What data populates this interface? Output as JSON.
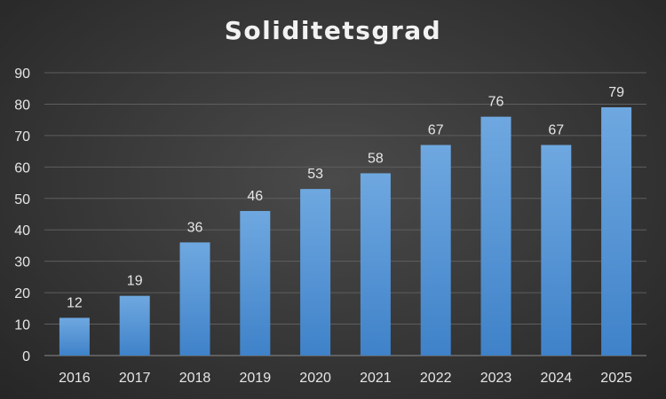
{
  "chart_data": {
    "type": "bar",
    "title": "Soliditetsgrad",
    "categories": [
      "2016",
      "2017",
      "2018",
      "2019",
      "2020",
      "2021",
      "2022",
      "2023",
      "2024",
      "2025"
    ],
    "values": [
      12,
      19,
      36,
      46,
      53,
      58,
      67,
      76,
      67,
      79
    ],
    "data_labels": [
      "12",
      "19",
      "36",
      "46",
      "53",
      "58",
      "67",
      "76",
      "67",
      "79"
    ],
    "ylim": [
      0,
      90
    ],
    "yticks": [
      0,
      10,
      20,
      30,
      40,
      50,
      60,
      70,
      80,
      90
    ],
    "grid": true,
    "legend": "none",
    "colors": {
      "bar_top": "#6fa8e0",
      "bar_bottom": "#3f82c9",
      "text": "#e6e6e6",
      "background": "#3a3a3a"
    }
  }
}
